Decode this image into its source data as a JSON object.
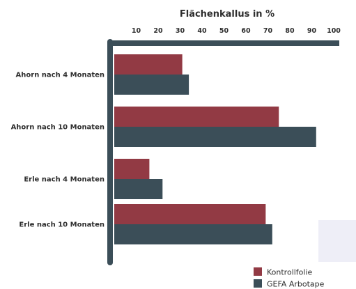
{
  "chart_data": {
    "type": "bar",
    "orientation": "horizontal",
    "title": "Flächenkallus in %",
    "xlabel": "",
    "ylabel": "",
    "xlim": [
      0,
      105
    ],
    "x_ticks": [
      10,
      20,
      30,
      40,
      50,
      60,
      70,
      80,
      90,
      100
    ],
    "categories": [
      "Ahorn nach 4 Monaten",
      "Ahorn nach 10 Monaten",
      "Erle nach 4 Monaten",
      "Erle nach 10 Monaten"
    ],
    "series": [
      {
        "name": "Kontrollfolie",
        "color": "#923a44",
        "values": [
          31,
          75,
          16,
          69
        ]
      },
      {
        "name": "GEFA Arbotape",
        "color": "#3b4e58",
        "values": [
          34,
          92,
          22,
          72
        ]
      }
    ],
    "axis_color": "#3b4e58",
    "legend_position": "bottom-right",
    "grid": false
  }
}
